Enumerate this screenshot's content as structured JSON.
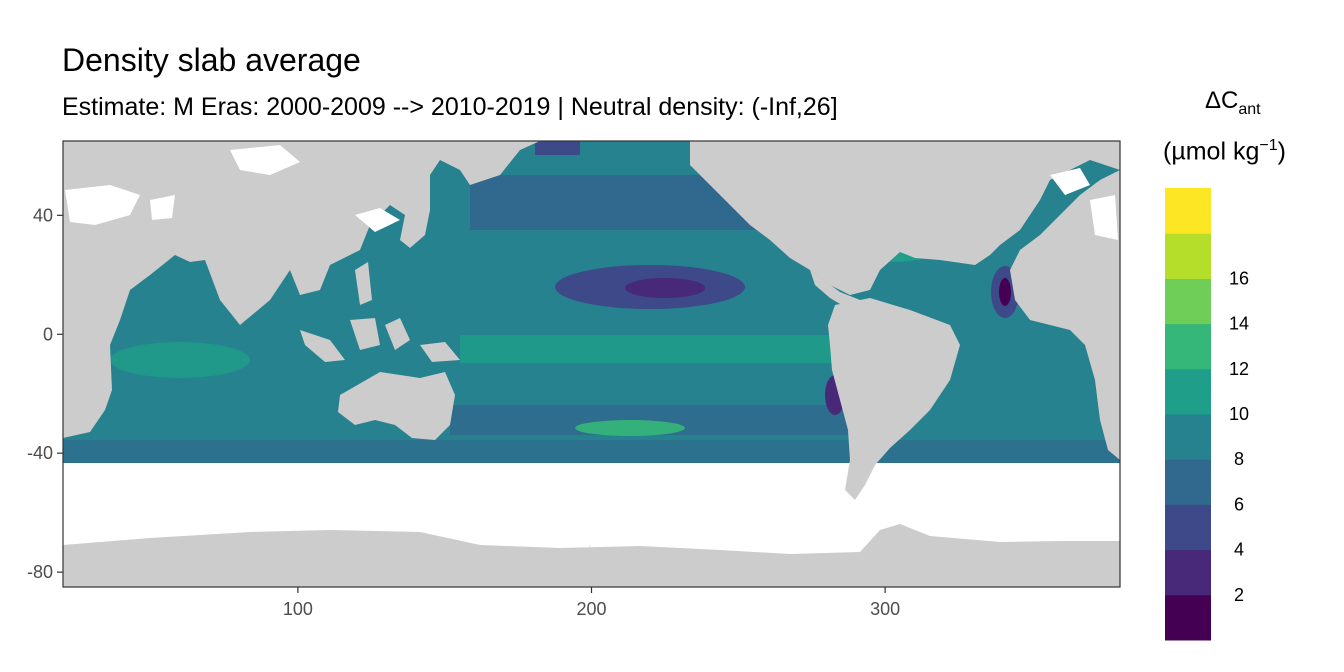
{
  "title": "Density slab average",
  "subtitle": "Estimate: M Eras: 2000-2009 --> 2010-2019 | Neutral density: (-Inf,26]",
  "legend": {
    "title_main": "ΔC",
    "title_sub": "ant",
    "units_prefix": "(µmol kg",
    "units_sup": "−1",
    "units_suffix": ")",
    "levels": [
      {
        "label": "",
        "color": "#440154"
      },
      {
        "label": "2",
        "color": "#482878"
      },
      {
        "label": "4",
        "color": "#3e4989"
      },
      {
        "label": "6",
        "color": "#31688e"
      },
      {
        "label": "8",
        "color": "#26828e"
      },
      {
        "label": "10",
        "color": "#1f9e89"
      },
      {
        "label": "12",
        "color": "#35b779"
      },
      {
        "label": "14",
        "color": "#6ece58"
      },
      {
        "label": "16",
        "color": "#b5de2b"
      },
      {
        "label": "",
        "color": "#fde725"
      }
    ]
  },
  "axes": {
    "x_ticks": [
      100,
      200,
      300
    ],
    "y_ticks": [
      40,
      0,
      -40,
      -80
    ],
    "x_range": [
      20,
      380
    ],
    "y_range": [
      -85,
      65
    ]
  },
  "colors": {
    "land": "#cccccc",
    "no_data": "#ffffff",
    "grid": "#ebebeb",
    "panel_border": "#333333"
  }
}
